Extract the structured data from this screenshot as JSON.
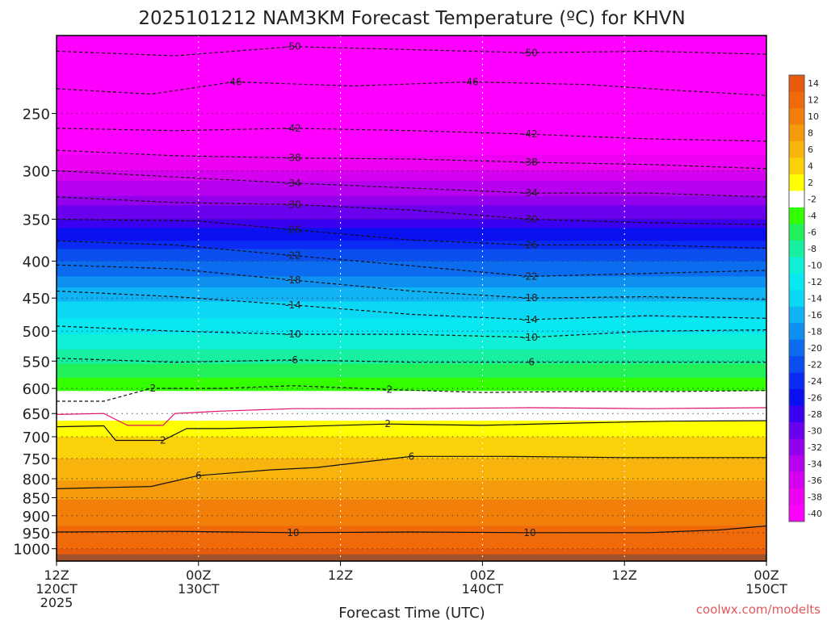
{
  "chart_data": {
    "type": "heatmap",
    "title": "2025101212 NAM3KM Forecast Temperature (ºC) for KHVN",
    "xlabel": "Forecast Time (UTC)",
    "ylabel": "",
    "credit": "coolwx.com/modelts",
    "y_scale": "log-pressure",
    "ylim": [
      1040,
      195
    ],
    "y_ticks": [
      250,
      300,
      350,
      400,
      450,
      500,
      550,
      600,
      650,
      700,
      750,
      800,
      850,
      900,
      950,
      1000
    ],
    "x_ticks": [
      {
        "hour": 0,
        "line1": "12Z",
        "line2": "120CT",
        "line3": "2025"
      },
      {
        "hour": 12,
        "line1": "00Z",
        "line2": "130CT",
        "line3": ""
      },
      {
        "hour": 24,
        "line1": "12Z",
        "line2": "",
        "line3": ""
      },
      {
        "hour": 36,
        "line1": "00Z",
        "line2": "140CT",
        "line3": ""
      },
      {
        "hour": 48,
        "line1": "12Z",
        "line2": "",
        "line3": ""
      },
      {
        "hour": 60,
        "line1": "00Z",
        "line2": "150CT",
        "line3": ""
      }
    ],
    "xlim": [
      0,
      60
    ],
    "colorbar": {
      "labels": [
        "14",
        "12",
        "10",
        "8",
        "6",
        "4",
        "2",
        "-2",
        "-4",
        "-6",
        "-8",
        "-10",
        "-12",
        "-14",
        "-16",
        "-18",
        "-20",
        "-22",
        "-24",
        "-26",
        "-28",
        "-30",
        "-32",
        "-34",
        "-36",
        "-38",
        "-40"
      ],
      "colors": [
        "#e85a0c",
        "#f06a0a",
        "#f27f0a",
        "#f59a0a",
        "#f8b30c",
        "#fbd20a",
        "#ffff00",
        "#ffffff",
        "#33ff00",
        "#22f05a",
        "#16f0a0",
        "#10f0d6",
        "#08e8f0",
        "#0ad8f5",
        "#10b4f5",
        "#0d90f0",
        "#0b6cf0",
        "#0a4ef0",
        "#0a2cf2",
        "#0a10f0",
        "#3a00f0",
        "#6a00ee",
        "#9400ee",
        "#b800f0",
        "#d500f0",
        "#ee00f2",
        "#ff00ff"
      ]
    },
    "series": [
      {
        "value": -50,
        "points": [
          [
            0,
            205
          ],
          [
            10,
            208
          ],
          [
            20,
            202
          ],
          [
            30,
            204
          ],
          [
            40,
            206
          ],
          [
            50,
            205
          ],
          [
            60,
            207
          ]
        ]
      },
      {
        "value": -46,
        "points": [
          [
            0,
            231
          ],
          [
            8,
            235
          ],
          [
            15,
            226
          ],
          [
            25,
            229
          ],
          [
            35,
            226
          ],
          [
            45,
            228
          ],
          [
            52,
            232
          ],
          [
            60,
            236
          ]
        ]
      },
      {
        "value": -42,
        "points": [
          [
            0,
            262
          ],
          [
            10,
            264
          ],
          [
            20,
            262
          ],
          [
            30,
            264
          ],
          [
            40,
            267
          ],
          [
            50,
            271
          ],
          [
            60,
            273
          ]
        ]
      },
      {
        "value": -38,
        "points": [
          [
            0,
            281
          ],
          [
            10,
            286
          ],
          [
            20,
            288
          ],
          [
            30,
            289
          ],
          [
            40,
            292
          ],
          [
            50,
            294
          ],
          [
            60,
            298
          ]
        ]
      },
      {
        "value": -34,
        "points": [
          [
            0,
            300
          ],
          [
            10,
            306
          ],
          [
            20,
            312
          ],
          [
            30,
            317
          ],
          [
            40,
            322
          ],
          [
            50,
            322
          ],
          [
            60,
            326
          ]
        ]
      },
      {
        "value": -30,
        "points": [
          [
            0,
            326
          ],
          [
            10,
            332
          ],
          [
            20,
            334
          ],
          [
            30,
            340
          ],
          [
            40,
            350
          ],
          [
            50,
            354
          ],
          [
            60,
            356
          ]
        ]
      },
      {
        "value": -26,
        "points": [
          [
            0,
            350
          ],
          [
            12,
            352
          ],
          [
            20,
            362
          ],
          [
            30,
            374
          ],
          [
            40,
            380
          ],
          [
            50,
            380
          ],
          [
            60,
            384
          ]
        ]
      },
      {
        "value": -22,
        "points": [
          [
            0,
            375
          ],
          [
            10,
            380
          ],
          [
            20,
            393
          ],
          [
            30,
            406
          ],
          [
            40,
            420
          ],
          [
            50,
            416
          ],
          [
            60,
            412
          ]
        ]
      },
      {
        "value": -18,
        "points": [
          [
            0,
            405
          ],
          [
            10,
            410
          ],
          [
            20,
            425
          ],
          [
            30,
            440
          ],
          [
            40,
            450
          ],
          [
            50,
            448
          ],
          [
            60,
            452
          ]
        ]
      },
      {
        "value": -14,
        "points": [
          [
            0,
            440
          ],
          [
            10,
            448
          ],
          [
            20,
            460
          ],
          [
            30,
            474
          ],
          [
            40,
            482
          ],
          [
            50,
            476
          ],
          [
            60,
            480
          ]
        ]
      },
      {
        "value": -10,
        "points": [
          [
            0,
            492
          ],
          [
            10,
            500
          ],
          [
            20,
            505
          ],
          [
            30,
            505
          ],
          [
            40,
            510
          ],
          [
            50,
            500
          ],
          [
            60,
            498
          ]
        ]
      },
      {
        "value": -6,
        "points": [
          [
            0,
            545
          ],
          [
            10,
            552
          ],
          [
            20,
            548
          ],
          [
            30,
            552
          ],
          [
            40,
            552
          ],
          [
            50,
            552
          ],
          [
            60,
            552
          ]
        ]
      },
      {
        "value": -2,
        "points": [
          [
            0,
            625
          ],
          [
            4,
            625
          ],
          [
            8,
            600
          ],
          [
            14,
            600
          ],
          [
            20,
            595
          ],
          [
            28,
            602
          ],
          [
            36,
            608
          ],
          [
            44,
            606
          ],
          [
            52,
            606
          ],
          [
            60,
            604
          ]
        ]
      },
      {
        "value": 0,
        "points": [
          [
            0,
            652
          ],
          [
            4,
            650
          ],
          [
            6,
            675
          ],
          [
            9,
            675
          ],
          [
            10,
            650
          ],
          [
            14,
            645
          ],
          [
            20,
            640
          ],
          [
            30,
            640
          ],
          [
            40,
            638
          ],
          [
            50,
            640
          ],
          [
            60,
            638
          ]
        ]
      },
      {
        "value": 2,
        "points": [
          [
            0,
            678
          ],
          [
            4,
            676
          ],
          [
            5,
            708
          ],
          [
            9,
            708
          ],
          [
            11,
            682
          ],
          [
            14,
            682
          ],
          [
            20,
            678
          ],
          [
            28,
            672
          ],
          [
            36,
            675
          ],
          [
            44,
            670
          ],
          [
            52,
            666
          ],
          [
            60,
            665
          ]
        ]
      },
      {
        "value": 6,
        "points": [
          [
            0,
            826
          ],
          [
            8,
            820
          ],
          [
            12,
            792
          ],
          [
            18,
            778
          ],
          [
            22,
            772
          ],
          [
            30,
            745
          ],
          [
            38,
            745
          ],
          [
            48,
            748
          ],
          [
            60,
            748
          ]
        ]
      },
      {
        "value": 10,
        "points": [
          [
            0,
            948
          ],
          [
            10,
            946
          ],
          [
            20,
            950
          ],
          [
            30,
            948
          ],
          [
            40,
            950
          ],
          [
            50,
            950
          ],
          [
            56,
            942
          ],
          [
            60,
            930
          ]
        ]
      }
    ]
  }
}
